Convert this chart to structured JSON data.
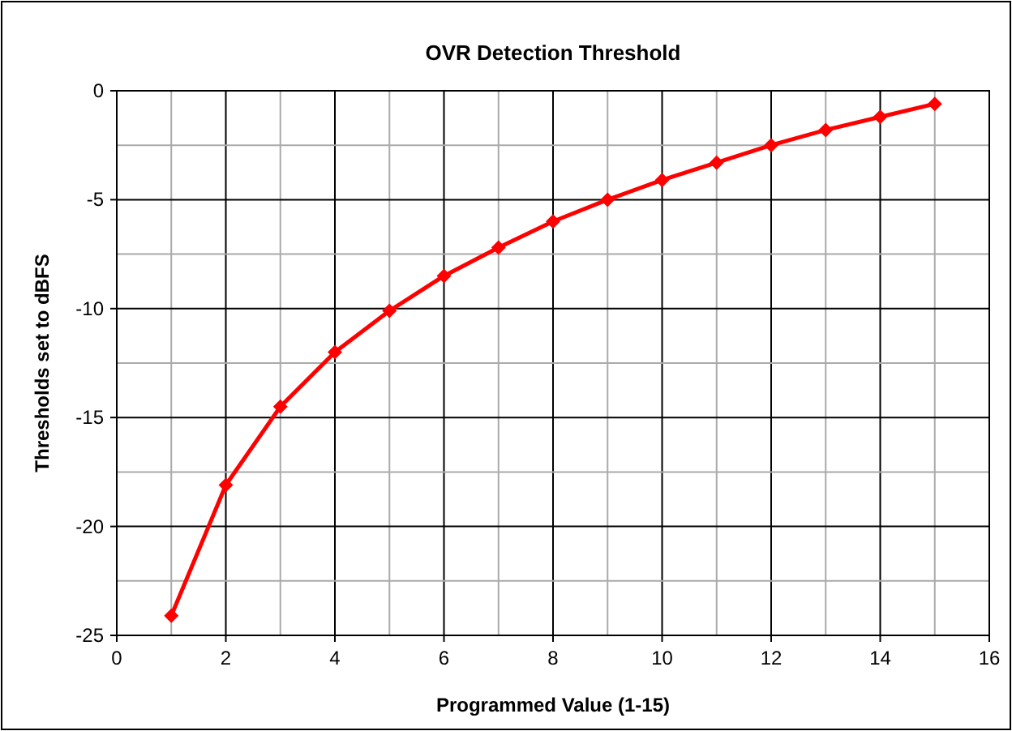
{
  "chart_data": {
    "type": "line",
    "title": "OVR Detection Threshold",
    "xlabel": "Programmed Value (1-15)",
    "ylabel": "Thresholds set to dBFS",
    "x": [
      1,
      2,
      3,
      4,
      5,
      6,
      7,
      8,
      9,
      10,
      11,
      12,
      13,
      14,
      15
    ],
    "series": [
      {
        "color": "#ff0000",
        "values": [
          -24.1,
          -18.1,
          -14.5,
          -12.0,
          -10.1,
          -8.5,
          -7.2,
          -6.0,
          -5.0,
          -4.1,
          -3.3,
          -2.5,
          -1.8,
          -1.2,
          -0.6
        ]
      }
    ],
    "xlim": [
      0,
      16
    ],
    "xticks": [
      0,
      {
        "value": 1,
        "label": null
      },
      2,
      {
        "value": 3,
        "label": null
      },
      4,
      {
        "value": 5,
        "label": null
      },
      6,
      {
        "value": 7,
        "label": null
      },
      8,
      {
        "value": 9,
        "label": null
      },
      10,
      {
        "value": 11,
        "label": null
      },
      12,
      {
        "value": 13,
        "label": null
      },
      14,
      {
        "value": 15,
        "label": null
      },
      16
    ],
    "ylim": [
      -25,
      0
    ],
    "yticks": [
      -25,
      {
        "value": -22.5,
        "label": null
      },
      -20,
      {
        "value": -17.5,
        "label": null
      },
      -15,
      {
        "value": -12.5,
        "label": null
      },
      -10,
      {
        "value": -7.5,
        "label": null
      },
      -5,
      {
        "value": -2.5,
        "label": null
      },
      0
    ],
    "grid": true,
    "marker": "diamond",
    "line_style": "solid"
  }
}
